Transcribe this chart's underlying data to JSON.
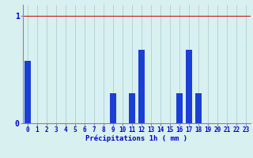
{
  "hours": [
    0,
    1,
    2,
    3,
    4,
    5,
    6,
    7,
    8,
    9,
    10,
    11,
    12,
    13,
    14,
    15,
    16,
    17,
    18,
    19,
    20,
    21,
    22,
    23
  ],
  "values": [
    0.58,
    0.0,
    0.0,
    0.0,
    0.0,
    0.0,
    0.0,
    0.0,
    0.0,
    0.28,
    0.0,
    0.28,
    0.68,
    0.0,
    0.0,
    0.0,
    0.28,
    0.68,
    0.28,
    0.0,
    0.0,
    0.0,
    0.0,
    0.0
  ],
  "bar_color": "#1a3fd4",
  "background_color": "#d8f0f0",
  "grid_color_x": "#a8c8cc",
  "grid_color_y": "#cc0000",
  "text_color": "#0000cc",
  "xlabel": "Précipitations 1h ( mm )",
  "ylim": [
    0,
    1.1
  ],
  "ytick_vals": [
    0,
    1
  ],
  "tick_label_color": "#0000cc",
  "xlabel_fontsize": 6.5,
  "tick_fontsize": 5.5
}
